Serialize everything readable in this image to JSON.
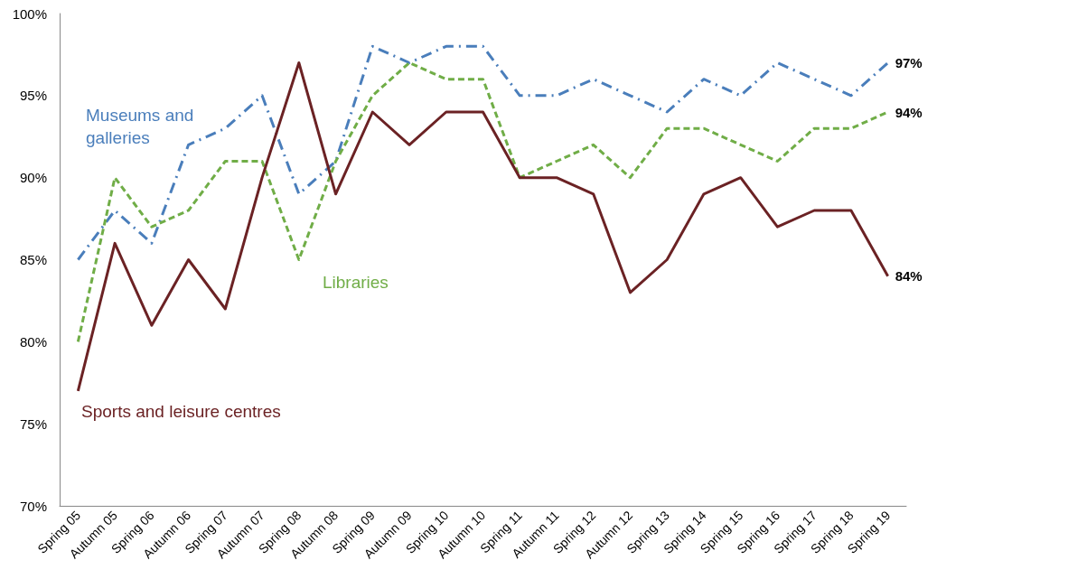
{
  "chart_data": {
    "type": "line",
    "categories": [
      "Spring 05",
      "Autumn 05",
      "Spring 06",
      "Autumn 06",
      "Spring 07",
      "Autumn 07",
      "Spring 08",
      "Autumn 08",
      "Spring 09",
      "Autumn 09",
      "Spring 10",
      "Autumn 10",
      "Spring 11",
      "Autumn 11",
      "Spring 12",
      "Autumn 12",
      "Spring 13",
      "Spring 14",
      "Spring 15",
      "Spring 16",
      "Spring 17",
      "Spring 18",
      "Spring 19"
    ],
    "series": [
      {
        "name": "Museums and galleries",
        "color": "#4a7ebb",
        "line_style": "dashdot",
        "values": [
          85,
          88,
          86,
          92,
          93,
          95,
          89,
          91,
          98,
          97,
          98,
          98,
          95,
          95,
          96,
          95,
          94,
          96,
          95,
          97,
          96,
          95,
          97
        ],
        "value_labels": [
          null,
          null,
          null,
          null,
          null,
          null,
          null,
          null,
          null,
          null,
          null,
          null,
          null,
          null,
          null,
          null,
          null,
          null,
          null,
          null,
          null,
          null,
          "97%"
        ]
      },
      {
        "name": "Libraries",
        "color": "#70ad47",
        "line_style": "dashed",
        "values": [
          80,
          90,
          87,
          88,
          91,
          91,
          85,
          91,
          95,
          97,
          96,
          96,
          90,
          91,
          92,
          90,
          93,
          93,
          92,
          91,
          93,
          93,
          94
        ],
        "value_labels": [
          null,
          null,
          null,
          null,
          null,
          null,
          null,
          null,
          null,
          null,
          null,
          null,
          null,
          null,
          null,
          null,
          null,
          null,
          null,
          null,
          null,
          null,
          "94%"
        ]
      },
      {
        "name": "Sports and leisure centres",
        "color": "#6b2224",
        "line_style": "solid",
        "values": [
          77,
          86,
          81,
          85,
          82,
          90,
          97,
          89,
          94,
          92,
          94,
          94,
          90,
          90,
          89,
          83,
          85,
          89,
          90,
          87,
          88,
          88,
          84
        ],
        "value_labels": [
          null,
          null,
          null,
          null,
          null,
          null,
          null,
          null,
          null,
          null,
          null,
          null,
          null,
          null,
          null,
          null,
          null,
          null,
          null,
          null,
          null,
          null,
          "84%"
        ]
      }
    ],
    "ylim": [
      70,
      100
    ],
    "yticks": [
      {
        "value": 70,
        "label": "70%"
      },
      {
        "value": 75,
        "label": "75%"
      },
      {
        "value": 80,
        "label": "80%"
      },
      {
        "value": 85,
        "label": "85%"
      },
      {
        "value": 90,
        "label": "90%"
      },
      {
        "value": 95,
        "label": "95%"
      },
      {
        "value": 100,
        "label": "100%"
      }
    ],
    "grid": false,
    "legend": false,
    "marker": "none"
  }
}
